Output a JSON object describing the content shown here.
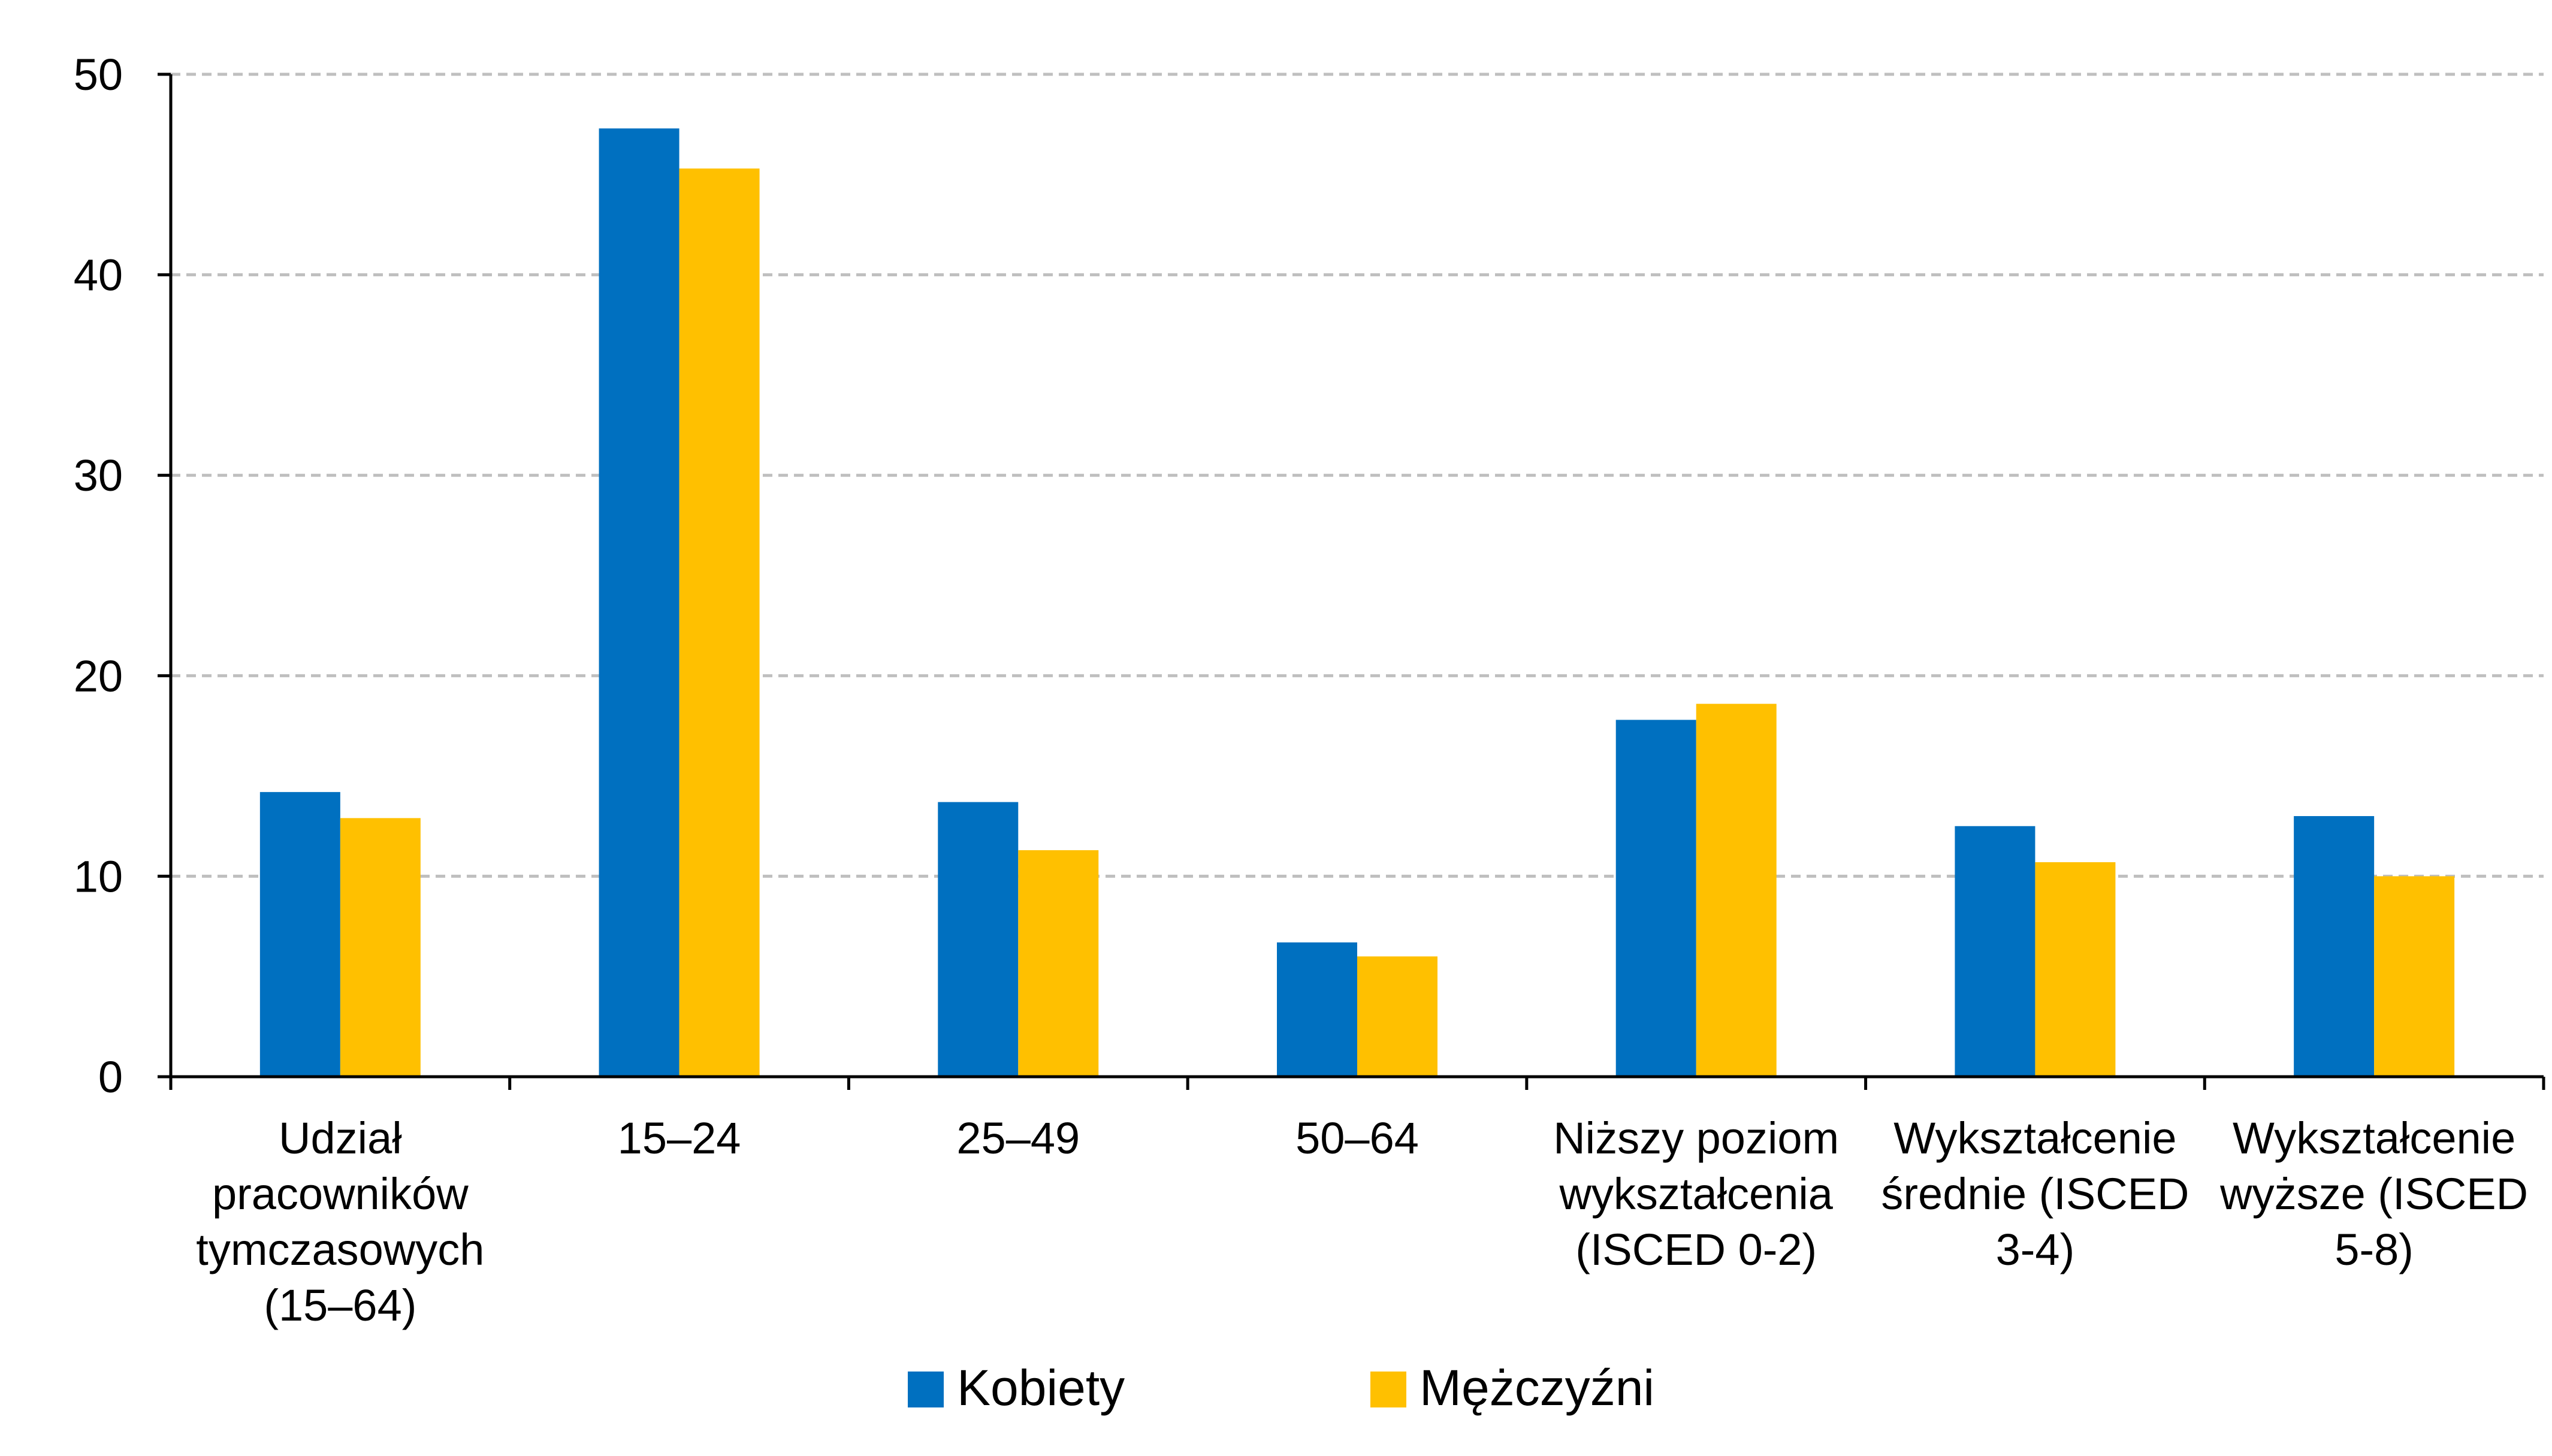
{
  "chart_data": {
    "type": "bar",
    "title": "",
    "xlabel": "",
    "ylabel": "",
    "categories": [
      [
        "Udział",
        "pracowników",
        "tymczasowych",
        "(15–64)"
      ],
      [
        "15–24"
      ],
      [
        "25–49"
      ],
      [
        "50–64"
      ],
      [
        "Niższy poziom",
        "wykształcenia",
        "(ISCED 0-2)"
      ],
      [
        "Wykształcenie",
        "średnie (ISCED",
        "3-4)"
      ],
      [
        "Wykształcenie",
        "wyższe (ISCED",
        "5-8)"
      ]
    ],
    "series": [
      {
        "name": "Kobiety",
        "color": "#0070C0",
        "values": [
          14.2,
          47.3,
          13.7,
          6.7,
          17.8,
          12.5,
          13.0
        ]
      },
      {
        "name": "Mężczyźni",
        "color": "#FFC000",
        "values": [
          12.9,
          45.3,
          11.3,
          6.0,
          18.6,
          10.7,
          10.0
        ]
      }
    ],
    "ylim": [
      0,
      50
    ],
    "yticks": [
      0,
      10,
      20,
      30,
      40,
      50
    ],
    "grid": true,
    "gridline_color": "#BFBFBF",
    "legend_position": "bottom"
  }
}
